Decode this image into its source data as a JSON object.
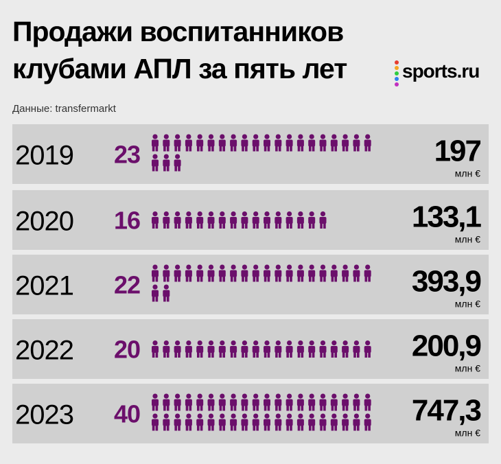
{
  "chart_data": {
    "type": "pictogram",
    "title": [
      "Продажи воспитанников",
      "клубами АПЛ за пять лет"
    ],
    "logo": "sports.ru",
    "source": "Данные: transfermarkt",
    "categories": [
      "2019",
      "2020",
      "2021",
      "2022",
      "2023"
    ],
    "series": [
      {
        "color": "#6b0f6b",
        "values": [
          23,
          16,
          22,
          20,
          40
        ]
      },
      {
        "color": "#000000",
        "values": [
          197,
          133.1,
          393.9,
          200.9,
          747.3
        ],
        "value_labels": [
          "197",
          "133,1",
          "393,9",
          "200,9",
          "747,3"
        ],
        "unit": "млн €"
      }
    ]
  }
}
